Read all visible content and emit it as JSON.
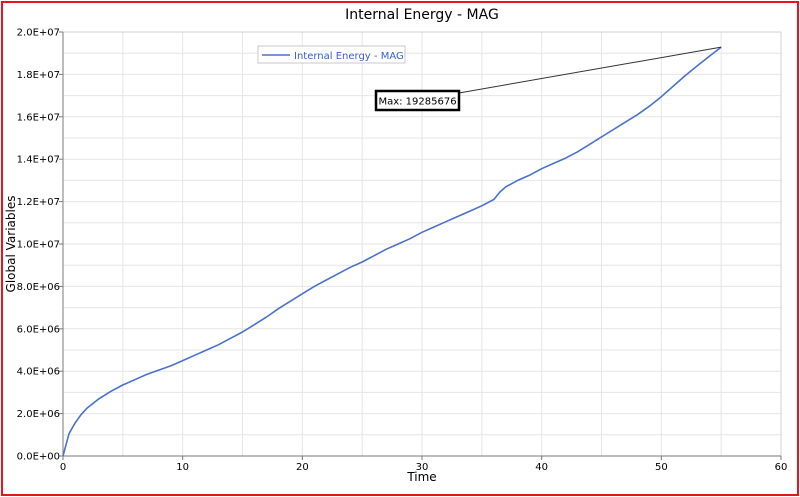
{
  "colors": {
    "frame_border": "#e8141c",
    "series_line": "#4a72c9",
    "grid": "#e6e6e6",
    "annotation_leader": "#333333"
  },
  "chart_data": {
    "type": "line",
    "title": "Internal Energy - MAG",
    "xlabel": "Time",
    "ylabel": "Global Variables",
    "xlim": [
      0,
      60
    ],
    "ylim": [
      0,
      20000000
    ],
    "xticks": [
      0,
      10,
      20,
      30,
      40,
      50,
      60
    ],
    "xtick_labels": [
      "0",
      "10",
      "20",
      "30",
      "40",
      "50",
      "60"
    ],
    "yticks": [
      0,
      2000000,
      4000000,
      6000000,
      8000000,
      10000000,
      12000000,
      14000000,
      16000000,
      18000000,
      20000000
    ],
    "ytick_labels": [
      "0.0E+00",
      "2.0E+06",
      "4.0E+06",
      "6.0E+06",
      "8.0E+06",
      "1.0E+07",
      "1.2E+07",
      "1.4E+07",
      "1.6E+07",
      "1.8E+07",
      "2.0E+07"
    ],
    "grid": true,
    "legend": {
      "placement": "top-left",
      "entries": [
        "Internal Energy - MAG"
      ]
    },
    "annotation": {
      "text": "Max: 19285676",
      "x": 55,
      "y": 19285676
    },
    "series": [
      {
        "name": "Internal Energy - MAG",
        "x": [
          0,
          0.5,
          1,
          1.5,
          2,
          3,
          4,
          5,
          6,
          7,
          8,
          9,
          10,
          11,
          12,
          13,
          14,
          15,
          16,
          17,
          18,
          19,
          20,
          21,
          22,
          23,
          24,
          25,
          26,
          27,
          28,
          29,
          30,
          31,
          32,
          33,
          34,
          35,
          36,
          36.5,
          37,
          38,
          39,
          40,
          41,
          42,
          43,
          44,
          45,
          46,
          47,
          48,
          49,
          50,
          51,
          52,
          53,
          54,
          55
        ],
        "y": [
          0,
          1050000,
          1550000,
          1950000,
          2250000,
          2700000,
          3050000,
          3350000,
          3600000,
          3850000,
          4050000,
          4250000,
          4500000,
          4750000,
          5000000,
          5250000,
          5550000,
          5850000,
          6200000,
          6550000,
          6950000,
          7300000,
          7650000,
          8000000,
          8300000,
          8600000,
          8900000,
          9150000,
          9450000,
          9750000,
          10000000,
          10250000,
          10550000,
          10800000,
          11050000,
          11300000,
          11550000,
          11800000,
          12100000,
          12450000,
          12700000,
          13000000,
          13250000,
          13550000,
          13800000,
          14050000,
          14350000,
          14700000,
          15050000,
          15400000,
          15750000,
          16100000,
          16500000,
          16950000,
          17450000,
          17950000,
          18400000,
          18850000,
          19285676
        ]
      }
    ]
  }
}
